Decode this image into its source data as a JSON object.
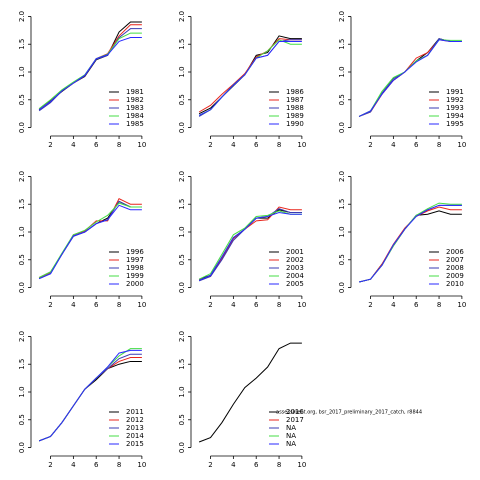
{
  "chart_data": [
    {
      "type": "line",
      "x": [
        1,
        2,
        3,
        4,
        5,
        6,
        7,
        8,
        9,
        10
      ],
      "xlim": [
        0.64,
        10.36
      ],
      "xticks": [
        2,
        4,
        6,
        8,
        10
      ],
      "ylim": [
        -0.08,
        2.08
      ],
      "yticks": [
        {
          "value": 0,
          "label": "0.0"
        },
        {
          "value": 0.5,
          "label": "0.5"
        },
        {
          "value": 1,
          "label": "1.0"
        },
        {
          "value": 1.5,
          "label": "1.5"
        },
        {
          "value": 2,
          "label": "2.0"
        }
      ],
      "legend": "bottom-right",
      "series": [
        {
          "name": "1981",
          "color": "#000000",
          "values": [
            0.32,
            0.48,
            0.65,
            0.8,
            0.92,
            1.22,
            1.3,
            1.72,
            1.9,
            1.9
          ]
        },
        {
          "name": "1982",
          "color": "#e8251c",
          "values": [
            0.33,
            0.47,
            0.66,
            0.8,
            0.93,
            1.24,
            1.33,
            1.65,
            1.85,
            1.85
          ]
        },
        {
          "name": "1983",
          "color": "#3b3bb3",
          "values": [
            0.3,
            0.45,
            0.66,
            0.8,
            0.93,
            1.23,
            1.3,
            1.62,
            1.78,
            1.78
          ]
        },
        {
          "name": "1984",
          "color": "#44dd44",
          "values": [
            0.34,
            0.5,
            0.68,
            0.82,
            0.95,
            1.24,
            1.32,
            1.6,
            1.7,
            1.7
          ]
        },
        {
          "name": "1985",
          "color": "#2a2aff",
          "values": [
            0.32,
            0.47,
            0.66,
            0.8,
            0.94,
            1.24,
            1.31,
            1.55,
            1.62,
            1.62
          ]
        }
      ]
    },
    {
      "type": "line",
      "x": [
        1,
        2,
        3,
        4,
        5,
        6,
        7,
        8,
        9,
        10
      ],
      "xlim": [
        0.64,
        10.36
      ],
      "xticks": [
        2,
        4,
        6,
        8,
        10
      ],
      "ylim": [
        -0.08,
        2.08
      ],
      "yticks": [
        {
          "value": 0,
          "label": "0.0"
        },
        {
          "value": 0.5,
          "label": "0.5"
        },
        {
          "value": 1,
          "label": "1.0"
        },
        {
          "value": 1.5,
          "label": "1.5"
        },
        {
          "value": 2,
          "label": "2.0"
        }
      ],
      "legend": "bottom-right",
      "series": [
        {
          "name": "1986",
          "color": "#000000",
          "values": [
            0.25,
            0.35,
            0.55,
            0.75,
            0.95,
            1.3,
            1.35,
            1.65,
            1.6,
            1.6
          ]
        },
        {
          "name": "1987",
          "color": "#e8251c",
          "values": [
            0.28,
            0.4,
            0.6,
            0.78,
            0.97,
            1.27,
            1.38,
            1.6,
            1.58,
            1.58
          ]
        },
        {
          "name": "1988",
          "color": "#3b3bb3",
          "values": [
            0.2,
            0.32,
            0.55,
            0.77,
            0.95,
            1.25,
            1.3,
            1.55,
            1.58,
            1.58
          ]
        },
        {
          "name": "1989",
          "color": "#44dd44",
          "values": [
            0.22,
            0.32,
            0.55,
            0.76,
            0.95,
            1.25,
            1.38,
            1.58,
            1.5,
            1.5
          ]
        },
        {
          "name": "1990",
          "color": "#2a2aff",
          "values": [
            0.22,
            0.32,
            0.55,
            0.76,
            0.95,
            1.25,
            1.3,
            1.55,
            1.55,
            1.55
          ]
        }
      ]
    },
    {
      "type": "line",
      "x": [
        1,
        2,
        3,
        4,
        5,
        6,
        7,
        8,
        9,
        10
      ],
      "xlim": [
        0.64,
        10.36
      ],
      "xticks": [
        2,
        4,
        6,
        8,
        10
      ],
      "ylim": [
        -0.08,
        2.08
      ],
      "yticks": [
        {
          "value": 0,
          "label": "0.0"
        },
        {
          "value": 0.5,
          "label": "0.5"
        },
        {
          "value": 1,
          "label": "1.0"
        },
        {
          "value": 1.5,
          "label": "1.5"
        },
        {
          "value": 2,
          "label": "2.0"
        }
      ],
      "legend": "bottom-right",
      "series": [
        {
          "name": "1991",
          "color": "#000000",
          "values": [
            0.2,
            0.3,
            0.6,
            0.85,
            1.0,
            1.2,
            1.35,
            1.6,
            1.55,
            1.55
          ]
        },
        {
          "name": "1992",
          "color": "#e8251c",
          "values": [
            0.2,
            0.28,
            0.6,
            0.85,
            1.0,
            1.25,
            1.35,
            1.58,
            1.55,
            1.55
          ]
        },
        {
          "name": "1993",
          "color": "#3b3bb3",
          "values": [
            0.2,
            0.28,
            0.62,
            0.88,
            1.0,
            1.2,
            1.3,
            1.6,
            1.55,
            1.55
          ]
        },
        {
          "name": "1994",
          "color": "#44dd44",
          "values": [
            0.2,
            0.3,
            0.65,
            0.9,
            1.0,
            1.2,
            1.3,
            1.58,
            1.57,
            1.57
          ]
        },
        {
          "name": "1995",
          "color": "#2a2aff",
          "values": [
            0.2,
            0.3,
            0.6,
            0.85,
            1.0,
            1.18,
            1.3,
            1.58,
            1.55,
            1.55
          ]
        }
      ]
    },
    {
      "type": "line",
      "x": [
        1,
        2,
        3,
        4,
        5,
        6,
        7,
        8,
        9,
        10
      ],
      "xlim": [
        0.64,
        10.36
      ],
      "xticks": [
        2,
        4,
        6,
        8,
        10
      ],
      "ylim": [
        -0.08,
        2.08
      ],
      "yticks": [
        {
          "value": 0,
          "label": "0.0"
        },
        {
          "value": 0.5,
          "label": "0.5"
        },
        {
          "value": 1,
          "label": "1.0"
        },
        {
          "value": 1.5,
          "label": "1.5"
        },
        {
          "value": 2,
          "label": "2.0"
        }
      ],
      "legend": "bottom-right",
      "series": [
        {
          "name": "1996",
          "color": "#000000",
          "values": [
            0.18,
            0.28,
            0.6,
            0.93,
            1.0,
            1.15,
            1.25,
            1.55,
            1.45,
            1.45
          ]
        },
        {
          "name": "1997",
          "color": "#e8251c",
          "values": [
            0.17,
            0.27,
            0.6,
            0.95,
            1.02,
            1.2,
            1.2,
            1.6,
            1.5,
            1.5
          ]
        },
        {
          "name": "1998",
          "color": "#3b3bb3",
          "values": [
            0.16,
            0.25,
            0.6,
            0.92,
            1.0,
            1.15,
            1.22,
            1.55,
            1.45,
            1.45
          ]
        },
        {
          "name": "1999",
          "color": "#44dd44",
          "values": [
            0.18,
            0.28,
            0.62,
            0.95,
            1.03,
            1.18,
            1.3,
            1.52,
            1.45,
            1.45
          ]
        },
        {
          "name": "2000",
          "color": "#2a2aff",
          "values": [
            0.16,
            0.25,
            0.6,
            0.93,
            1.0,
            1.15,
            1.22,
            1.48,
            1.4,
            1.4
          ]
        }
      ]
    },
    {
      "type": "line",
      "x": [
        1,
        2,
        3,
        4,
        5,
        6,
        7,
        8,
        9,
        10
      ],
      "xlim": [
        0.64,
        10.36
      ],
      "xticks": [
        2,
        4,
        6,
        8,
        10
      ],
      "ylim": [
        -0.08,
        2.08
      ],
      "yticks": [
        {
          "value": 0,
          "label": "0.0"
        },
        {
          "value": 0.5,
          "label": "0.5"
        },
        {
          "value": 1,
          "label": "1.0"
        },
        {
          "value": 1.5,
          "label": "1.5"
        },
        {
          "value": 2,
          "label": "2.0"
        }
      ],
      "legend": "bottom-right",
      "series": [
        {
          "name": "2001",
          "color": "#000000",
          "values": [
            0.15,
            0.22,
            0.55,
            0.9,
            1.05,
            1.25,
            1.25,
            1.4,
            1.35,
            1.35
          ]
        },
        {
          "name": "2002",
          "color": "#e8251c",
          "values": [
            0.14,
            0.2,
            0.52,
            0.88,
            1.05,
            1.2,
            1.22,
            1.45,
            1.4,
            1.4
          ]
        },
        {
          "name": "2003",
          "color": "#3b3bb3",
          "values": [
            0.12,
            0.2,
            0.5,
            0.85,
            1.05,
            1.25,
            1.28,
            1.42,
            1.35,
            1.35
          ]
        },
        {
          "name": "2004",
          "color": "#44dd44",
          "values": [
            0.15,
            0.25,
            0.6,
            0.95,
            1.07,
            1.28,
            1.3,
            1.38,
            1.32,
            1.32
          ]
        },
        {
          "name": "2005",
          "color": "#2a2aff",
          "values": [
            0.13,
            0.22,
            0.55,
            0.9,
            1.05,
            1.25,
            1.28,
            1.35,
            1.32,
            1.32
          ]
        }
      ]
    },
    {
      "type": "line",
      "x": [
        1,
        2,
        3,
        4,
        5,
        6,
        7,
        8,
        9,
        10
      ],
      "xlim": [
        0.64,
        10.36
      ],
      "xticks": [
        2,
        4,
        6,
        8,
        10
      ],
      "ylim": [
        -0.08,
        2.08
      ],
      "yticks": [
        {
          "value": 0,
          "label": "0.0"
        },
        {
          "value": 0.5,
          "label": "0.5"
        },
        {
          "value": 1,
          "label": "1.0"
        },
        {
          "value": 1.5,
          "label": "1.5"
        },
        {
          "value": 2,
          "label": "2.0"
        }
      ],
      "legend": "bottom-right",
      "series": [
        {
          "name": "2006",
          "color": "#000000",
          "values": [
            0.1,
            0.15,
            0.42,
            0.75,
            1.05,
            1.3,
            1.32,
            1.38,
            1.32,
            1.32
          ]
        },
        {
          "name": "2007",
          "color": "#e8251c",
          "values": [
            0.1,
            0.15,
            0.42,
            0.78,
            1.07,
            1.28,
            1.38,
            1.45,
            1.4,
            1.4
          ]
        },
        {
          "name": "2008",
          "color": "#3b3bb3",
          "values": [
            0.1,
            0.15,
            0.4,
            0.75,
            1.05,
            1.3,
            1.4,
            1.48,
            1.48,
            1.48
          ]
        },
        {
          "name": "2009",
          "color": "#44dd44",
          "values": [
            0.1,
            0.15,
            0.4,
            0.75,
            1.05,
            1.3,
            1.42,
            1.52,
            1.5,
            1.5
          ]
        },
        {
          "name": "2010",
          "color": "#2a2aff",
          "values": [
            0.1,
            0.15,
            0.4,
            0.77,
            1.05,
            1.28,
            1.4,
            1.48,
            1.48,
            1.48
          ]
        }
      ]
    },
    {
      "type": "line",
      "x": [
        1,
        2,
        3,
        4,
        5,
        6,
        7,
        8,
        9,
        10
      ],
      "xlim": [
        0.64,
        10.36
      ],
      "xticks": [
        2,
        4,
        6,
        8,
        10
      ],
      "ylim": [
        -0.08,
        2.08
      ],
      "yticks": [
        {
          "value": 0,
          "label": "0.0"
        },
        {
          "value": 0.5,
          "label": "0.5"
        },
        {
          "value": 1,
          "label": "1.0"
        },
        {
          "value": 1.5,
          "label": "1.5"
        },
        {
          "value": 2,
          "label": "2.0"
        }
      ],
      "legend": "bottom-right",
      "series": [
        {
          "name": "2011",
          "color": "#000000",
          "values": [
            0.12,
            0.2,
            0.45,
            0.75,
            1.05,
            1.22,
            1.42,
            1.5,
            1.55,
            1.55
          ]
        },
        {
          "name": "2012",
          "color": "#e8251c",
          "values": [
            0.12,
            0.2,
            0.45,
            0.75,
            1.05,
            1.25,
            1.42,
            1.55,
            1.62,
            1.62
          ]
        },
        {
          "name": "2013",
          "color": "#3b3bb3",
          "values": [
            0.12,
            0.2,
            0.45,
            0.75,
            1.05,
            1.25,
            1.42,
            1.6,
            1.68,
            1.68
          ]
        },
        {
          "name": "2014",
          "color": "#44dd44",
          "values": [
            0.12,
            0.2,
            0.45,
            0.75,
            1.05,
            1.25,
            1.45,
            1.65,
            1.78,
            1.78
          ]
        },
        {
          "name": "2015",
          "color": "#2a2aff",
          "values": [
            0.12,
            0.2,
            0.45,
            0.75,
            1.05,
            1.25,
            1.45,
            1.7,
            1.75,
            1.75
          ]
        }
      ]
    },
    {
      "type": "line",
      "x": [
        1,
        2,
        3,
        4,
        5,
        6,
        7,
        8,
        9,
        10
      ],
      "xlim": [
        0.64,
        10.36
      ],
      "xticks": [
        2,
        4,
        6,
        8,
        10
      ],
      "ylim": [
        -0.08,
        2.08
      ],
      "yticks": [
        {
          "value": 0,
          "label": "0.0"
        },
        {
          "value": 0.5,
          "label": "0.5"
        },
        {
          "value": 1,
          "label": "1.0"
        },
        {
          "value": 1.5,
          "label": "1.5"
        },
        {
          "value": 2,
          "label": "2.0"
        }
      ],
      "legend": "bottom-right",
      "annotation": "assessment.org, bsr_2017_preliminary_2017_catch, r8844",
      "series": [
        {
          "name": "2016",
          "color": "#000000",
          "values": [
            0.1,
            0.18,
            0.45,
            0.78,
            1.08,
            1.25,
            1.45,
            1.78,
            1.88,
            1.88
          ]
        },
        {
          "name": "2017",
          "color": "#e8251c",
          "values": [
            null,
            null,
            null,
            null,
            null,
            null,
            null,
            null,
            null,
            null
          ]
        },
        {
          "name": "NA",
          "color": "#3b3bb3",
          "values": [
            null,
            null,
            null,
            null,
            null,
            null,
            null,
            null,
            null,
            null
          ]
        },
        {
          "name": "NA",
          "color": "#44dd44",
          "values": [
            null,
            null,
            null,
            null,
            null,
            null,
            null,
            null,
            null,
            null
          ]
        },
        {
          "name": "NA",
          "color": "#2a2aff",
          "values": [
            null,
            null,
            null,
            null,
            null,
            null,
            null,
            null,
            null,
            null
          ]
        }
      ]
    }
  ]
}
